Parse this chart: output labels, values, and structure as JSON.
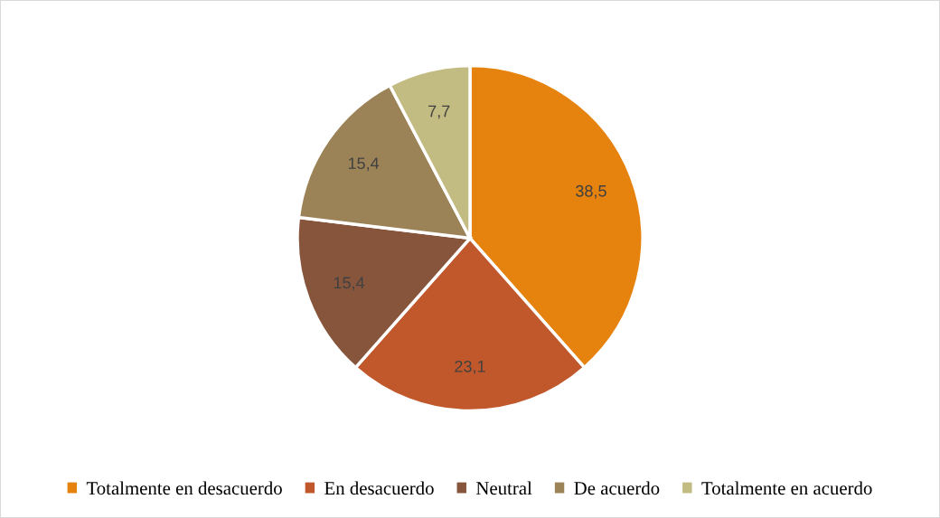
{
  "chart_data": {
    "type": "pie",
    "categories": [
      "Totalmente en desacuerdo",
      "En desacuerdo",
      "Neutral",
      "De acuerdo",
      "Totalmente en acuerdo"
    ],
    "values": [
      38.5,
      23.1,
      15.4,
      15.4,
      7.7
    ],
    "value_labels": [
      "38,5",
      "23,1",
      "15,4",
      "15,4",
      "7,7"
    ],
    "colors": [
      "#e6820e",
      "#c0582b",
      "#86553c",
      "#9c8357",
      "#c3bc82"
    ],
    "legend": "bottom"
  }
}
